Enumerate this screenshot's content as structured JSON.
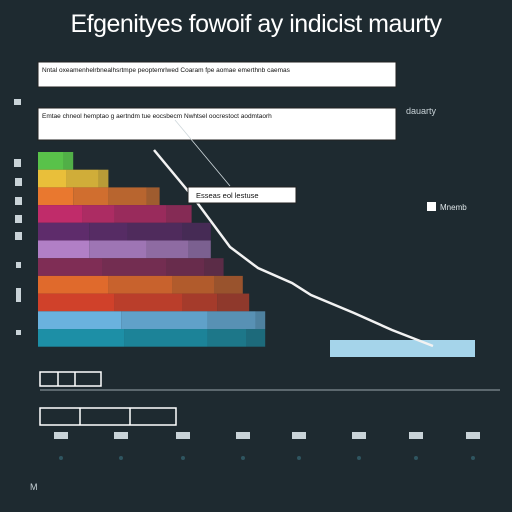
{
  "page": {
    "title": "Efgenityes fowoif ay indicist maurty",
    "bottom_label": "M"
  },
  "annotations": {
    "box1": "Nntal oxeamenhelrbnealhsrtmpe peoptemrlwed Coaram fpe aomae emerthnb caemas",
    "box2": "Emtae chneol hemptao g aertndm tue eocsbecm Nwhtsel oocrestoct aodmtaorh",
    "callout": "Esseas eol lestuse",
    "right_label": "dauarty",
    "legend_label": "Mnemb"
  },
  "colors": {
    "background": "#1e2a30",
    "text": "#ffffff",
    "line": "#f2f2f2"
  },
  "chart_data": {
    "type": "bar",
    "orientation": "horizontal",
    "stacked": "stepped",
    "title": "Efgenityes fowoif ay indicist maurty",
    "series": [
      {
        "color": "#59c24a",
        "values": [
          8,
          3
        ]
      },
      {
        "color": "#e9bf3a",
        "values": [
          9,
          10,
          3
        ]
      },
      {
        "color": "#e9782f",
        "values": [
          11,
          11,
          12,
          4
        ]
      },
      {
        "color": "#c02c6a",
        "values": [
          14,
          10,
          16,
          8
        ]
      },
      {
        "color": "#5e2c6b",
        "values": [
          16,
          12,
          17,
          9
        ]
      },
      {
        "color": "#b17fc6",
        "values": [
          16,
          18,
          13,
          7
        ]
      },
      {
        "color": "#7f2d55",
        "values": [
          20,
          20,
          12,
          6
        ]
      },
      {
        "color": "#e06a2c",
        "values": [
          22,
          20,
          13,
          9
        ]
      },
      {
        "color": "#d0412a",
        "values": [
          24,
          21,
          11,
          10
        ]
      },
      {
        "color": "#6ab2de",
        "values": [
          26,
          27,
          15,
          3
        ]
      },
      {
        "color": "#1d8fa6",
        "values": [
          27,
          26,
          12,
          6
        ]
      }
    ],
    "connector_color": "#a5d4ea",
    "line": [
      [
        154,
        150
      ],
      [
        193,
        197
      ],
      [
        230,
        247
      ],
      [
        258,
        268
      ],
      [
        292,
        283
      ],
      [
        311,
        295
      ],
      [
        354,
        313
      ],
      [
        392,
        330
      ],
      [
        433,
        346
      ]
    ]
  }
}
